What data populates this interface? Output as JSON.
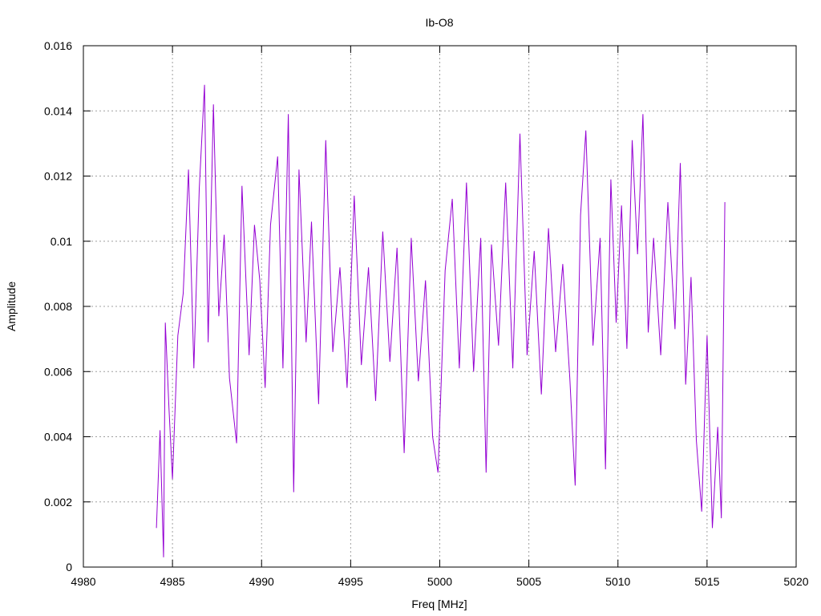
{
  "chart_data": {
    "type": "line",
    "title": "Ib-O8",
    "xlabel": "Freq [MHz]",
    "ylabel": "Amplitude",
    "xlim": [
      4980,
      5020
    ],
    "ylim": [
      0,
      0.016
    ],
    "grid": true,
    "x_ticks": [
      "4980",
      "4985",
      "4990",
      "4995",
      "5000",
      "5005",
      "5010",
      "5015",
      "5020"
    ],
    "y_ticks": [
      "0",
      "0.002",
      "0.004",
      "0.006",
      "0.008",
      "0.01",
      "0.012",
      "0.014",
      "0.016"
    ],
    "series": [
      {
        "color": "#9400d3",
        "points": [
          [
            4984.1,
            0.0012
          ],
          [
            4984.3,
            0.0042
          ],
          [
            4984.5,
            0.0003
          ],
          [
            4984.6,
            0.0075
          ],
          [
            4984.8,
            0.0049
          ],
          [
            4985.0,
            0.0027
          ],
          [
            4985.3,
            0.0071
          ],
          [
            4985.6,
            0.0084
          ],
          [
            4985.9,
            0.0122
          ],
          [
            4986.2,
            0.0061
          ],
          [
            4986.5,
            0.0116
          ],
          [
            4986.8,
            0.0148
          ],
          [
            4987.0,
            0.0069
          ],
          [
            4987.3,
            0.0142
          ],
          [
            4987.6,
            0.0077
          ],
          [
            4987.9,
            0.0102
          ],
          [
            4988.2,
            0.0058
          ],
          [
            4988.6,
            0.0038
          ],
          [
            4988.9,
            0.0117
          ],
          [
            4989.3,
            0.0065
          ],
          [
            4989.6,
            0.0105
          ],
          [
            4989.9,
            0.0088
          ],
          [
            4990.2,
            0.0055
          ],
          [
            4990.5,
            0.0105
          ],
          [
            4990.9,
            0.0126
          ],
          [
            4991.2,
            0.0061
          ],
          [
            4991.5,
            0.0139
          ],
          [
            4991.8,
            0.0023
          ],
          [
            4992.1,
            0.0122
          ],
          [
            4992.5,
            0.0069
          ],
          [
            4992.8,
            0.0106
          ],
          [
            4993.2,
            0.005
          ],
          [
            4993.6,
            0.0131
          ],
          [
            4994.0,
            0.0066
          ],
          [
            4994.4,
            0.0092
          ],
          [
            4994.8,
            0.0055
          ],
          [
            4995.2,
            0.0114
          ],
          [
            4995.6,
            0.0062
          ],
          [
            4996.0,
            0.0092
          ],
          [
            4996.4,
            0.0051
          ],
          [
            4996.8,
            0.0103
          ],
          [
            4997.2,
            0.0063
          ],
          [
            4997.6,
            0.0098
          ],
          [
            4998.0,
            0.0035
          ],
          [
            4998.4,
            0.0101
          ],
          [
            4998.8,
            0.0057
          ],
          [
            4999.2,
            0.0088
          ],
          [
            4999.6,
            0.004
          ],
          [
            4999.9,
            0.0029
          ],
          [
            5000.3,
            0.0091
          ],
          [
            5000.7,
            0.0113
          ],
          [
            5001.1,
            0.0061
          ],
          [
            5001.5,
            0.0118
          ],
          [
            5001.9,
            0.006
          ],
          [
            5002.3,
            0.0101
          ],
          [
            5002.6,
            0.0029
          ],
          [
            5002.9,
            0.0099
          ],
          [
            5003.3,
            0.0068
          ],
          [
            5003.7,
            0.0118
          ],
          [
            5004.1,
            0.0061
          ],
          [
            5004.5,
            0.0133
          ],
          [
            5004.9,
            0.0065
          ],
          [
            5005.3,
            0.0097
          ],
          [
            5005.7,
            0.0053
          ],
          [
            5006.1,
            0.0104
          ],
          [
            5006.5,
            0.0066
          ],
          [
            5006.9,
            0.0093
          ],
          [
            5007.3,
            0.0058
          ],
          [
            5007.6,
            0.0025
          ],
          [
            5007.9,
            0.0108
          ],
          [
            5008.2,
            0.0134
          ],
          [
            5008.6,
            0.0068
          ],
          [
            5009.0,
            0.0101
          ],
          [
            5009.3,
            0.003
          ],
          [
            5009.6,
            0.0119
          ],
          [
            5009.9,
            0.0075
          ],
          [
            5010.2,
            0.0111
          ],
          [
            5010.5,
            0.0067
          ],
          [
            5010.8,
            0.0131
          ],
          [
            5011.1,
            0.0096
          ],
          [
            5011.4,
            0.0139
          ],
          [
            5011.7,
            0.0072
          ],
          [
            5012.0,
            0.0101
          ],
          [
            5012.4,
            0.0065
          ],
          [
            5012.8,
            0.0112
          ],
          [
            5013.2,
            0.0073
          ],
          [
            5013.5,
            0.0124
          ],
          [
            5013.8,
            0.0056
          ],
          [
            5014.1,
            0.0089
          ],
          [
            5014.4,
            0.0039
          ],
          [
            5014.7,
            0.0017
          ],
          [
            5015.0,
            0.0071
          ],
          [
            5015.3,
            0.0012
          ],
          [
            5015.6,
            0.0043
          ],
          [
            5015.8,
            0.0015
          ],
          [
            5016.0,
            0.0112
          ]
        ]
      }
    ]
  }
}
